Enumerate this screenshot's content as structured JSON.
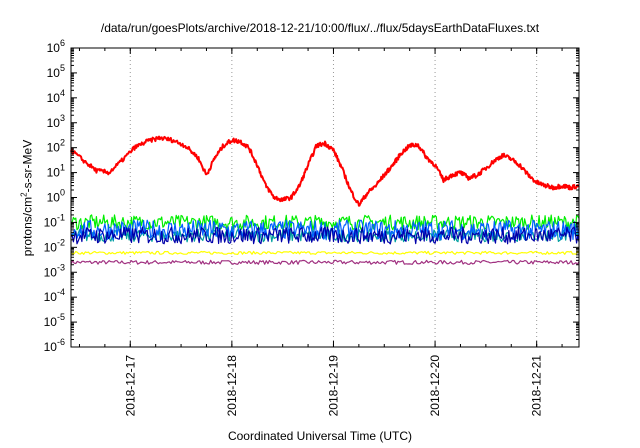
{
  "chart_data": {
    "type": "line",
    "title": "/data/run/goesPlots/archive/2018-12-21/10:00/flux/../flux/5daysEarthDataFluxes.txt",
    "xlabel": "Coordinated Universal Time (UTC)",
    "ylabel": {
      "pre": "protons/cm",
      "sup": "2",
      "post": "-s-sr-MeV"
    },
    "yscale": "log",
    "ylim": [
      1e-06,
      1000000.0
    ],
    "xlim": [
      "2018-12-16 10:00",
      "2018-12-21 10:00"
    ],
    "yticks": [
      {
        "mantissa": "10",
        "exp": "-6",
        "value": 1e-06
      },
      {
        "mantissa": "10",
        "exp": "-5",
        "value": 1e-05
      },
      {
        "mantissa": "10",
        "exp": "-4",
        "value": 0.0001
      },
      {
        "mantissa": "10",
        "exp": "-3",
        "value": 0.001
      },
      {
        "mantissa": "10",
        "exp": "-2",
        "value": 0.01
      },
      {
        "mantissa": "10",
        "exp": "-1",
        "value": 0.1
      },
      {
        "mantissa": "10",
        "exp": "0",
        "value": 1
      },
      {
        "mantissa": "10",
        "exp": "1",
        "value": 10
      },
      {
        "mantissa": "10",
        "exp": "2",
        "value": 100
      },
      {
        "mantissa": "10",
        "exp": "3",
        "value": 1000
      },
      {
        "mantissa": "10",
        "exp": "4",
        "value": 10000
      },
      {
        "mantissa": "10",
        "exp": "5",
        "value": 100000
      },
      {
        "mantissa": "10",
        "exp": "6",
        "value": 1000000
      }
    ],
    "xticks": [
      {
        "label": "2018-12-17",
        "value": "2018-12-17 00:00"
      },
      {
        "label": "2018-12-18",
        "value": "2018-12-18 00:00"
      },
      {
        "label": "2018-12-19",
        "value": "2018-12-19 00:00"
      },
      {
        "label": "2018-12-20",
        "value": "2018-12-20 00:00"
      },
      {
        "label": "2018-12-21",
        "value": "2018-12-21 00:00"
      }
    ],
    "grid": "vertical dotted at x ticks",
    "legend": "none",
    "series": [
      {
        "color": "#ff0000",
        "noise": "smooth",
        "x": [
          "2018-12-16 10:00",
          "2018-12-16 13:00",
          "2018-12-16 16:00",
          "2018-12-16 19:00",
          "2018-12-16 22:00",
          "2018-12-17 01:00",
          "2018-12-17 04:00",
          "2018-12-17 07:00",
          "2018-12-17 10:00",
          "2018-12-17 13:00",
          "2018-12-17 16:00",
          "2018-12-17 18:00",
          "2018-12-17 20:00",
          "2018-12-17 22:00",
          "2018-12-18 00:00",
          "2018-12-18 02:00",
          "2018-12-18 04:00",
          "2018-12-18 06:00",
          "2018-12-18 08:00",
          "2018-12-18 10:00",
          "2018-12-18 12:00",
          "2018-12-18 14:00",
          "2018-12-18 16:00",
          "2018-12-18 18:00",
          "2018-12-18 20:00",
          "2018-12-18 22:00",
          "2018-12-19 00:00",
          "2018-12-19 02:00",
          "2018-12-19 04:00",
          "2018-12-19 06:00",
          "2018-12-19 08:00",
          "2018-12-19 10:00",
          "2018-12-19 12:00",
          "2018-12-19 14:00",
          "2018-12-19 16:00",
          "2018-12-19 18:00",
          "2018-12-19 20:00",
          "2018-12-19 22:00",
          "2018-12-20 00:00",
          "2018-12-20 02:00",
          "2018-12-20 04:00",
          "2018-12-20 06:00",
          "2018-12-20 08:00",
          "2018-12-20 10:00",
          "2018-12-20 12:00",
          "2018-12-20 14:00",
          "2018-12-20 16:00",
          "2018-12-20 18:00",
          "2018-12-20 20:00",
          "2018-12-20 22:00",
          "2018-12-21 00:00",
          "2018-12-21 02:00",
          "2018-12-21 04:00",
          "2018-12-21 06:00",
          "2018-12-21 08:00",
          "2018-12-21 10:00"
        ],
        "y": [
          80,
          30,
          12,
          10,
          30,
          100,
          180,
          250,
          200,
          120,
          40,
          8,
          40,
          120,
          200,
          180,
          100,
          20,
          3,
          1,
          0.8,
          1,
          3,
          20,
          120,
          150,
          80,
          15,
          2,
          0.5,
          1.5,
          3,
          8,
          20,
          60,
          120,
          130,
          40,
          20,
          5,
          8,
          10,
          6,
          8,
          15,
          30,
          50,
          35,
          20,
          8,
          4,
          3,
          2.5,
          3,
          2.5,
          3
        ]
      },
      {
        "color": "#00ee00",
        "base": 0.1,
        "spread": 2.0,
        "noise": "dense",
        "x": [
          "2018-12-16 10:00",
          "2018-12-21 10:00"
        ]
      },
      {
        "color": "#0060ff",
        "base": 0.05,
        "spread": 2.5,
        "noise": "dense",
        "x": [
          "2018-12-16 10:00",
          "2018-12-21 10:00"
        ]
      },
      {
        "color": "#00a0a0",
        "base": 0.03,
        "spread": 1.8,
        "noise": "dense",
        "x": [
          "2018-12-16 10:00",
          "2018-12-21 10:00"
        ]
      },
      {
        "color": "#0000aa",
        "base": 0.03,
        "spread": 2.2,
        "noise": "dense",
        "x": [
          "2018-12-16 10:00",
          "2018-12-21 10:00"
        ]
      },
      {
        "color": "#ffff00",
        "base": 0.006,
        "spread": 1.15,
        "noise": "fine",
        "x": [
          "2018-12-16 10:00",
          "2018-12-21 10:00"
        ]
      },
      {
        "color": "#a03080",
        "base": 0.0025,
        "spread": 1.2,
        "noise": "fine",
        "x": [
          "2018-12-16 10:00",
          "2018-12-21 10:00"
        ]
      }
    ]
  }
}
